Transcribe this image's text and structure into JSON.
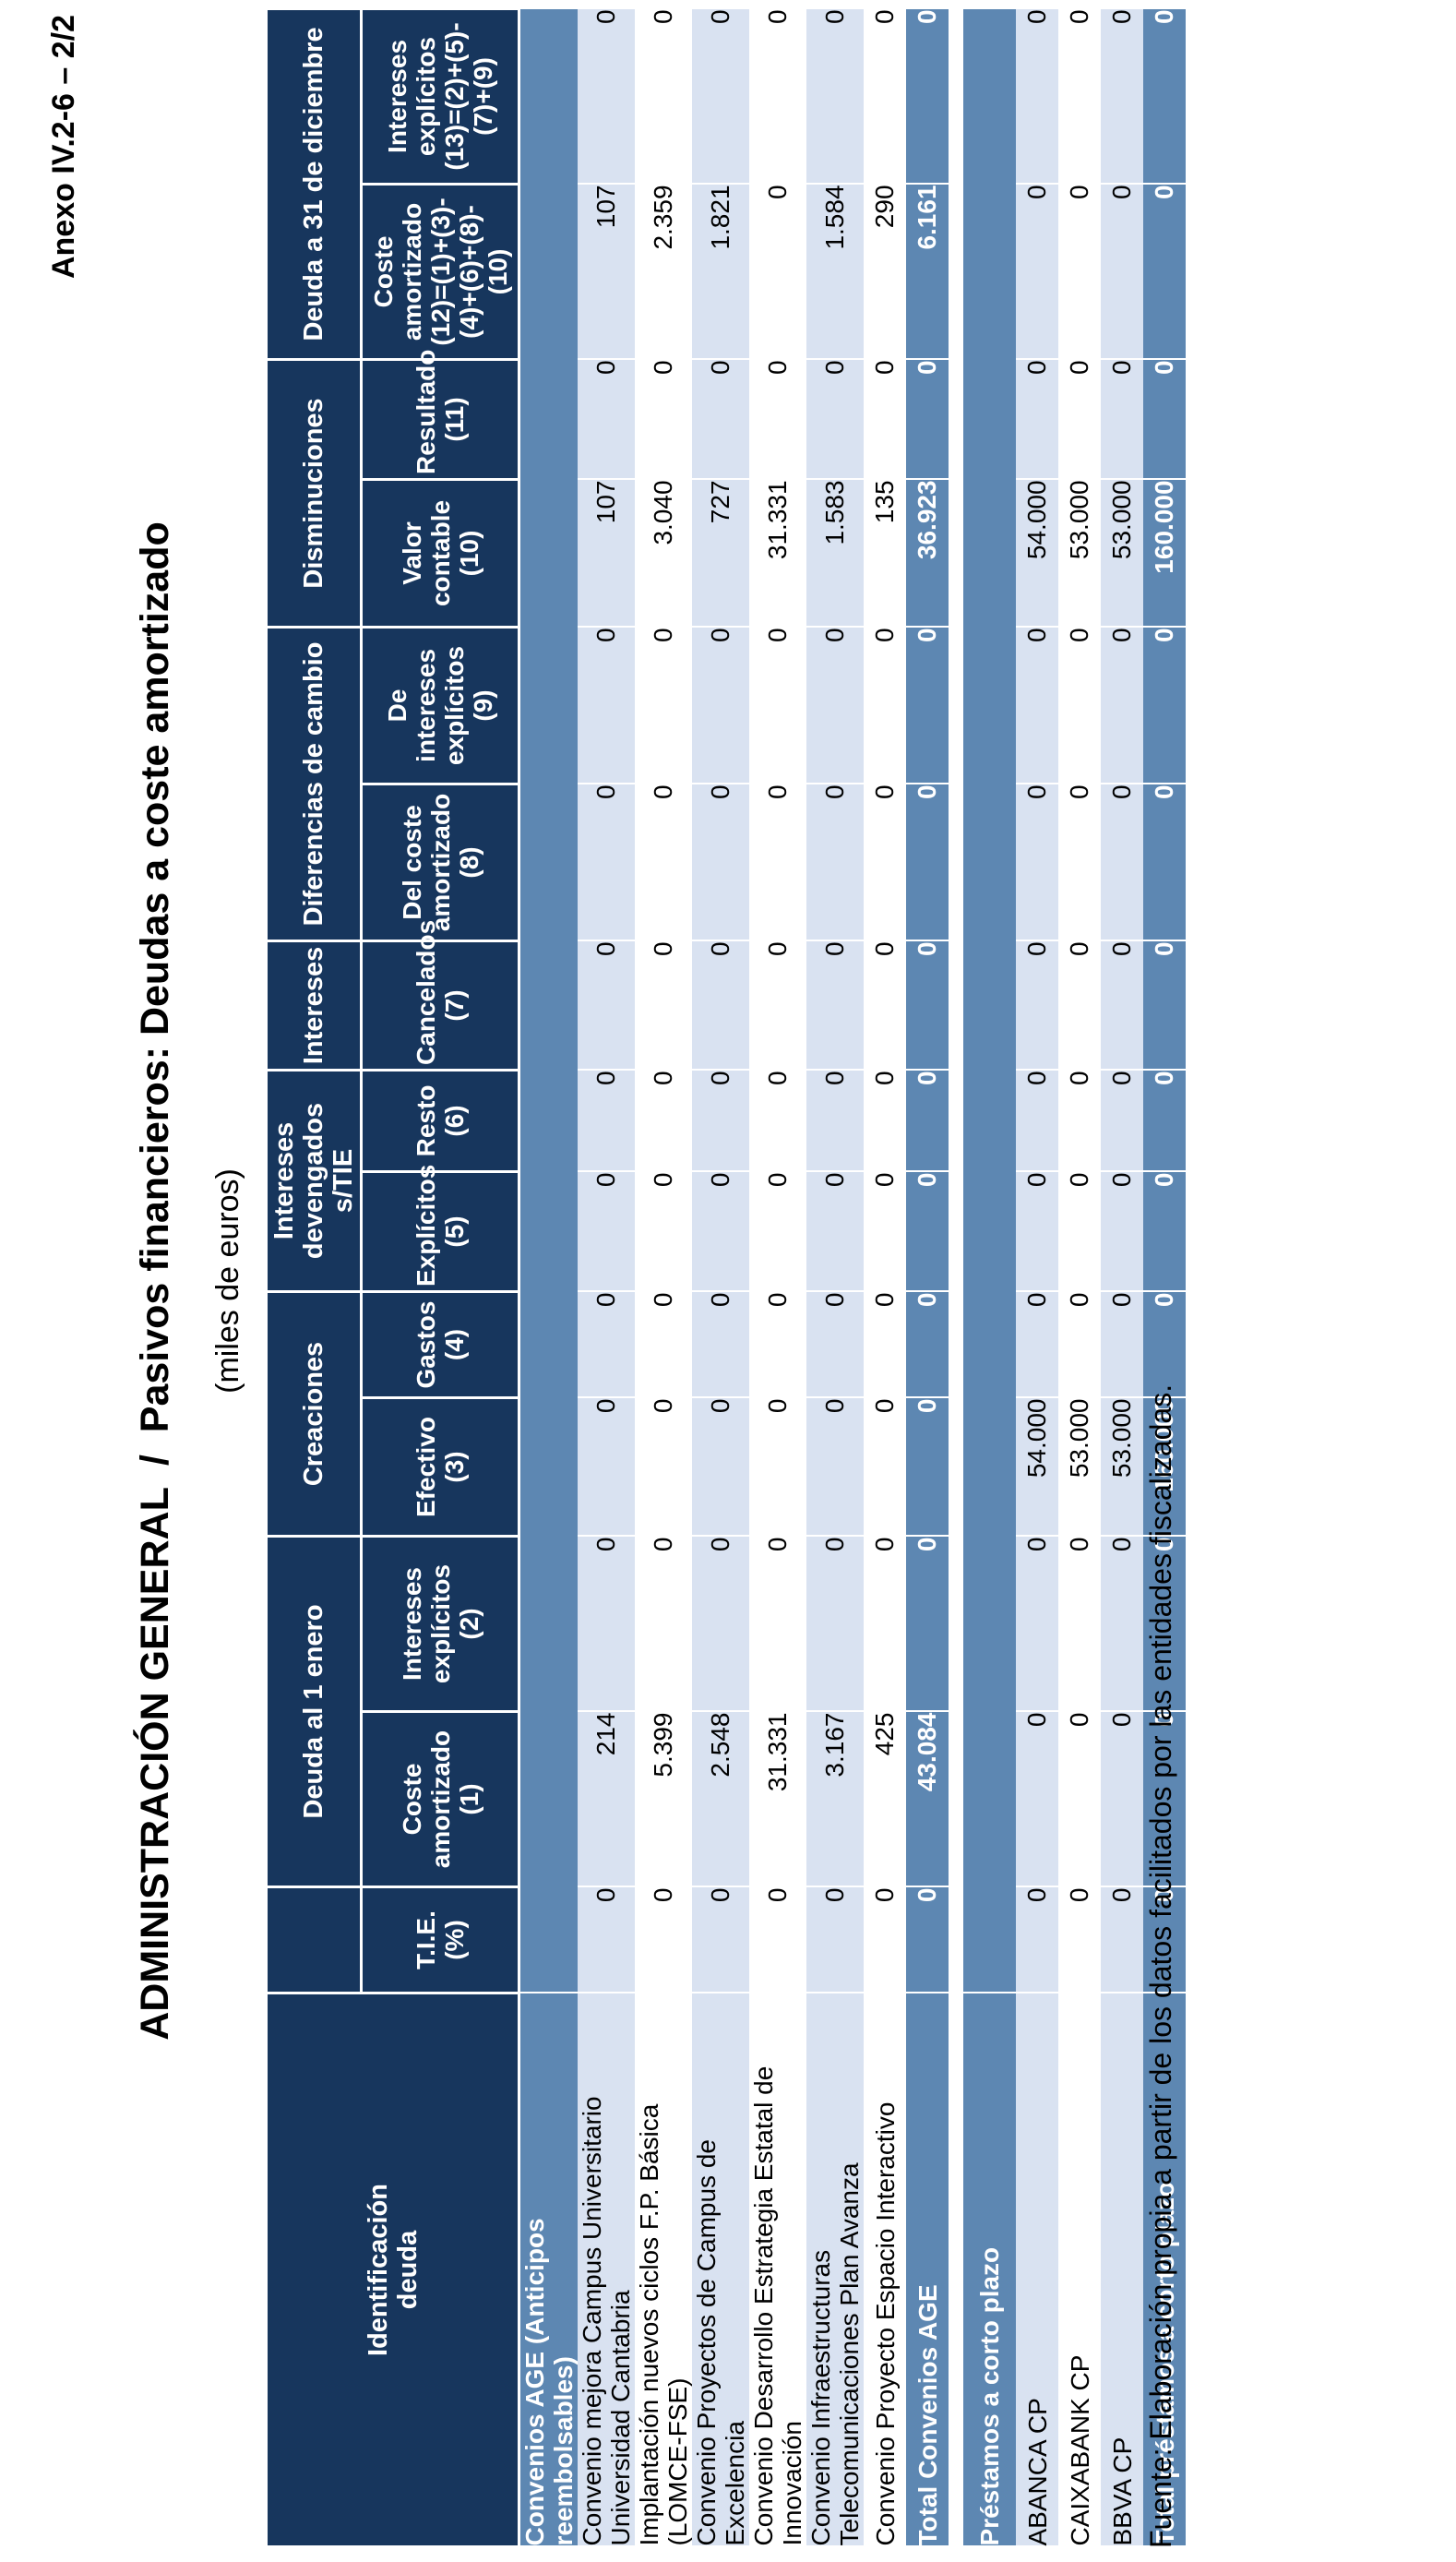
{
  "page": {
    "annex": "Anexo IV.2-6 – 2/2",
    "title": "ADMINISTRACIÓN GENERAL  /  Pasivos financieros: Deudas a coste amortizado",
    "subtitle": "(miles de euros)",
    "source_note": "Fuente: Elaboración propia a partir de los datos facilitados por las entidades fiscalizadas."
  },
  "colors": {
    "header_navy": "#17365D",
    "steel_blue": "#5D87B2",
    "row_light_blue": "#D9E2F1"
  },
  "table": {
    "corner_header": "Identificación\ndeuda",
    "groups": [
      {
        "label": "",
        "colspan": 1
      },
      {
        "label": "Deuda al 1 enero",
        "colspan": 2
      },
      {
        "label": "Creaciones",
        "colspan": 2
      },
      {
        "label": "Intereses\ndevengados s/TIE",
        "colspan": 2
      },
      {
        "label": "Intereses",
        "colspan": 1
      },
      {
        "label": "Diferencias de cambio",
        "colspan": 2
      },
      {
        "label": "Disminuciones",
        "colspan": 2
      },
      {
        "label": "Deuda a 31 de diciembre",
        "colspan": 2
      }
    ],
    "subheaders": [
      "T.I.E.\n(%)",
      "Coste\namortizado\n(1)",
      "Intereses\nexplícitos\n(2)",
      "Efectivo\n(3)",
      "Gastos\n(4)",
      "Explícitos\n(5)",
      "Resto\n(6)",
      "Cancelados\n(7)",
      "Del coste\namortizado\n(8)",
      "De\nintereses\nexplícitos\n(9)",
      "Valor\ncontable\n(10)",
      "Resultado\n(11)",
      "Coste\namortizado\n(12)=(1)+(3)-\n(4)+(6)+(8)-\n(10)",
      "Intereses\nexplícitos\n(13)=(2)+(5)-\n(7)+(9)"
    ],
    "rows": [
      {
        "type": "section",
        "label": "Convenios AGE (Anticipos\nreembolsables)"
      },
      {
        "type": "data",
        "label": "Convenio mejora Campus Universitario\nUniversidad Cantabria",
        "values": [
          "0",
          "214",
          "0",
          "0",
          "0",
          "0",
          "0",
          "0",
          "0",
          "0",
          "107",
          "0",
          "107",
          "0"
        ]
      },
      {
        "type": "data",
        "label": "Implantación nuevos ciclos F.P. Básica\n(LOMCE-FSE)",
        "values": [
          "0",
          "5.399",
          "0",
          "0",
          "0",
          "0",
          "0",
          "0",
          "0",
          "0",
          "3.040",
          "0",
          "2.359",
          "0"
        ]
      },
      {
        "type": "data",
        "label": "Convenio Proyectos de Campus de\nExcelencia",
        "values": [
          "0",
          "2.548",
          "0",
          "0",
          "0",
          "0",
          "0",
          "0",
          "0",
          "0",
          "727",
          "0",
          "1.821",
          "0"
        ]
      },
      {
        "type": "data",
        "label": "Convenio Desarrollo Estrategia Estatal de\nInnovación",
        "values": [
          "0",
          "31.331",
          "0",
          "0",
          "0",
          "0",
          "0",
          "0",
          "0",
          "0",
          "31.331",
          "0",
          "0",
          "0"
        ]
      },
      {
        "type": "data",
        "label": "Convenio Infraestructuras\nTelecomunicaciones Plan Avanza",
        "values": [
          "0",
          "3.167",
          "0",
          "0",
          "0",
          "0",
          "0",
          "0",
          "0",
          "0",
          "1.583",
          "0",
          "1.584",
          "0"
        ]
      },
      {
        "type": "data",
        "label": "Convenio Proyecto Espacio Interactivo",
        "values": [
          "0",
          "425",
          "0",
          "0",
          "0",
          "0",
          "0",
          "0",
          "0",
          "0",
          "135",
          "0",
          "290",
          "0"
        ]
      },
      {
        "type": "total",
        "label": "Total Convenios AGE",
        "values": [
          "0",
          "43.084",
          "0",
          "0",
          "0",
          "0",
          "0",
          "0",
          "0",
          "0",
          "36.923",
          "0",
          "6.161",
          "0"
        ]
      },
      {
        "type": "spacer"
      },
      {
        "type": "section",
        "label": "Préstamos a corto plazo"
      },
      {
        "type": "data",
        "label": "ABANCA CP",
        "values": [
          "0",
          "0",
          "0",
          "54.000",
          "0",
          "0",
          "0",
          "0",
          "0",
          "0",
          "54.000",
          "0",
          "0",
          "0"
        ]
      },
      {
        "type": "data",
        "label": "CAIXABANK CP",
        "values": [
          "0",
          "0",
          "0",
          "53.000",
          "0",
          "0",
          "0",
          "0",
          "0",
          "0",
          "53.000",
          "0",
          "0",
          "0"
        ]
      },
      {
        "type": "data",
        "label": "BBVA CP",
        "values": [
          "0",
          "0",
          "0",
          "53.000",
          "0",
          "0",
          "0",
          "0",
          "0",
          "0",
          "53.000",
          "0",
          "0",
          "0"
        ]
      },
      {
        "type": "total",
        "label": "Total préstamos a corto plazo",
        "values": [
          "0",
          "0",
          "0",
          "160.000",
          "0",
          "0",
          "0",
          "0",
          "0",
          "0",
          "160.000",
          "0",
          "0",
          "0"
        ]
      }
    ]
  }
}
